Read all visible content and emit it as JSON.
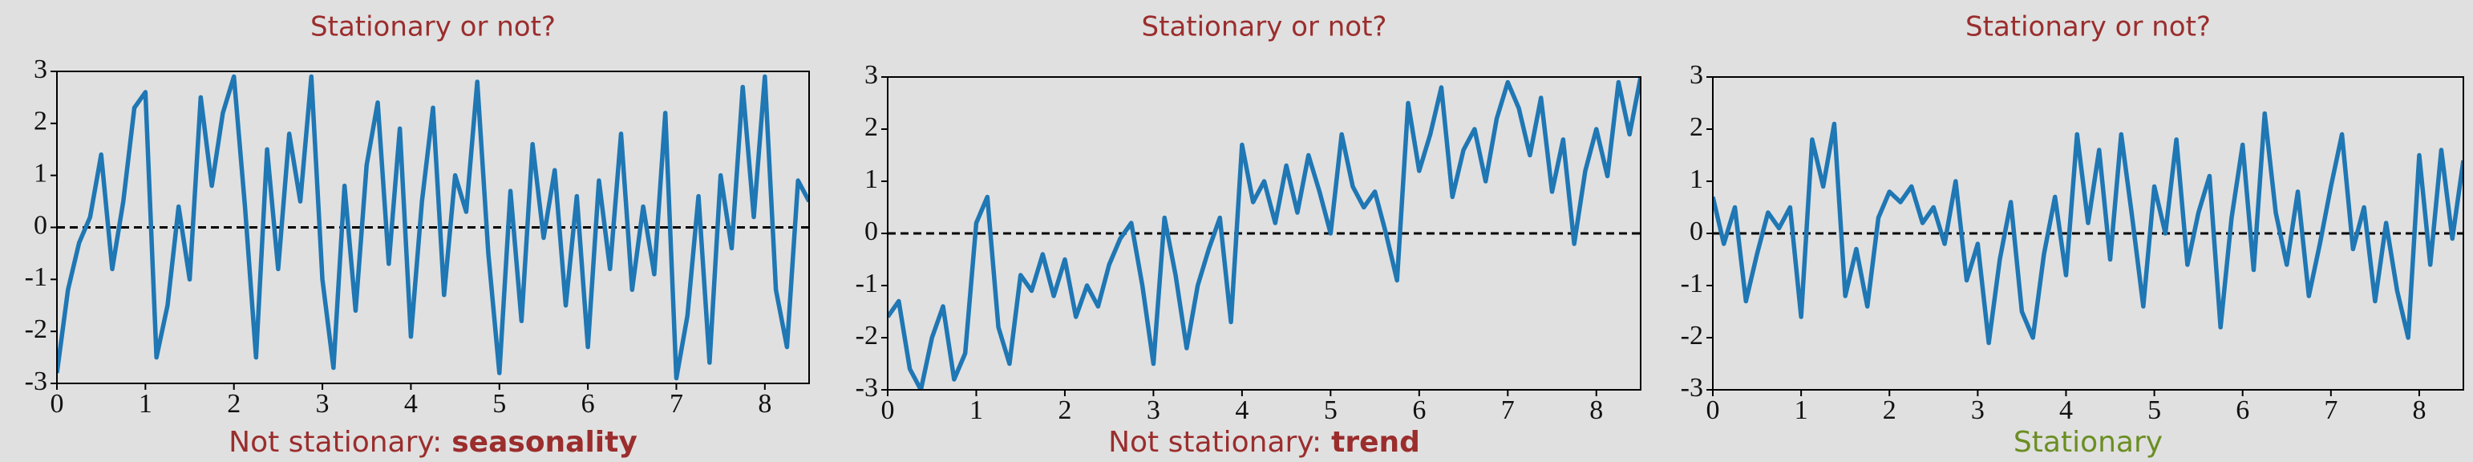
{
  "chart_data": [
    {
      "type": "line",
      "title": "Stationary or not?",
      "title_color": "#9b2d2d",
      "caption": "Not stationary:",
      "caption_emphasis": "seasonality",
      "caption_color": "#9b2d2d",
      "x": [
        0,
        0.125,
        0.25,
        0.375,
        0.5,
        0.625,
        0.75,
        0.875,
        1,
        1.125,
        1.25,
        1.375,
        1.5,
        1.625,
        1.75,
        1.875,
        2,
        2.125,
        2.25,
        2.375,
        2.5,
        2.625,
        2.75,
        2.875,
        3,
        3.125,
        3.25,
        3.375,
        3.5,
        3.625,
        3.75,
        3.875,
        4,
        4.125,
        4.25,
        4.375,
        4.5,
        4.625,
        4.75,
        4.875,
        5,
        5.125,
        5.25,
        5.375,
        5.5,
        5.625,
        5.75,
        5.875,
        6,
        6.125,
        6.25,
        6.375,
        6.5,
        6.625,
        6.75,
        6.875,
        7,
        7.125,
        7.25,
        7.375,
        7.5,
        7.625,
        7.75,
        7.875,
        8,
        8.125,
        8.25,
        8.375,
        8.5
      ],
      "values": [
        -2.8,
        -1.2,
        -0.3,
        0.2,
        1.4,
        -0.8,
        0.5,
        2.3,
        2.6,
        -2.5,
        -1.5,
        0.4,
        -1.0,
        2.5,
        0.8,
        2.2,
        2.9,
        0.4,
        -2.5,
        1.5,
        -0.8,
        1.8,
        0.5,
        2.9,
        -1.0,
        -2.7,
        0.8,
        -1.6,
        1.2,
        2.4,
        -0.7,
        1.9,
        -2.1,
        0.5,
        2.3,
        -1.3,
        1.0,
        0.3,
        2.8,
        -0.5,
        -2.8,
        0.7,
        -1.8,
        1.6,
        -0.2,
        1.1,
        -1.5,
        0.6,
        -2.3,
        0.9,
        -0.8,
        1.8,
        -1.2,
        0.4,
        -0.9,
        2.2,
        -2.9,
        -1.7,
        0.6,
        -2.6,
        1.0,
        -0.4,
        2.7,
        0.2,
        2.9,
        -1.2,
        -2.3,
        0.9,
        0.5
      ],
      "color": "#1f77b4",
      "hline": 0,
      "xlim": [
        0,
        8.5
      ],
      "xticks": [
        0,
        1,
        2,
        3,
        4,
        5,
        6,
        7,
        8
      ],
      "ylim": [
        -3,
        3
      ],
      "yticks": [
        -3,
        -2,
        -1,
        0,
        1,
        2,
        3
      ]
    },
    {
      "type": "line",
      "title": "Stationary or not?",
      "title_color": "#9b2d2d",
      "caption": "Not stationary:",
      "caption_emphasis": "trend",
      "caption_color": "#9b2d2d",
      "x": [
        0,
        0.125,
        0.25,
        0.375,
        0.5,
        0.625,
        0.75,
        0.875,
        1,
        1.125,
        1.25,
        1.375,
        1.5,
        1.625,
        1.75,
        1.875,
        2,
        2.125,
        2.25,
        2.375,
        2.5,
        2.625,
        2.75,
        2.875,
        3,
        3.125,
        3.25,
        3.375,
        3.5,
        3.625,
        3.75,
        3.875,
        4,
        4.125,
        4.25,
        4.375,
        4.5,
        4.625,
        4.75,
        4.875,
        5,
        5.125,
        5.25,
        5.375,
        5.5,
        5.625,
        5.75,
        5.875,
        6,
        6.125,
        6.25,
        6.375,
        6.5,
        6.625,
        6.75,
        6.875,
        7,
        7.125,
        7.25,
        7.375,
        7.5,
        7.625,
        7.75,
        7.875,
        8,
        8.125,
        8.25,
        8.375,
        8.5
      ],
      "values": [
        -1.6,
        -1.3,
        -2.6,
        -3.0,
        -2.0,
        -1.4,
        -2.8,
        -2.3,
        0.2,
        0.7,
        -1.8,
        -2.5,
        -0.8,
        -1.1,
        -0.4,
        -1.2,
        -0.5,
        -1.6,
        -1.0,
        -1.4,
        -0.6,
        -0.1,
        0.2,
        -1.0,
        -2.5,
        0.3,
        -0.8,
        -2.2,
        -1.0,
        -0.3,
        0.3,
        -1.7,
        1.7,
        0.6,
        1.0,
        0.2,
        1.3,
        0.4,
        1.5,
        0.8,
        0.0,
        1.9,
        0.9,
        0.5,
        0.8,
        0.0,
        -0.9,
        2.5,
        1.2,
        1.9,
        2.8,
        0.7,
        1.6,
        2.0,
        1.0,
        2.2,
        2.9,
        2.4,
        1.5,
        2.6,
        0.8,
        1.8,
        -0.2,
        1.2,
        2.0,
        1.1,
        2.9,
        1.9,
        3.0
      ],
      "color": "#1f77b4",
      "hline": 0,
      "xlim": [
        0,
        8.5
      ],
      "xticks": [
        0,
        1,
        2,
        3,
        4,
        5,
        6,
        7,
        8
      ],
      "ylim": [
        -3,
        3
      ],
      "yticks": [
        -3,
        -2,
        -1,
        0,
        1,
        2,
        3
      ]
    },
    {
      "type": "line",
      "title": "Stationary or not?",
      "title_color": "#9b2d2d",
      "caption": "Stationary",
      "caption_color": "#6b8e23",
      "x": [
        0,
        0.125,
        0.25,
        0.375,
        0.5,
        0.625,
        0.75,
        0.875,
        1,
        1.125,
        1.25,
        1.375,
        1.5,
        1.625,
        1.75,
        1.875,
        2,
        2.125,
        2.25,
        2.375,
        2.5,
        2.625,
        2.75,
        2.875,
        3,
        3.125,
        3.25,
        3.375,
        3.5,
        3.625,
        3.75,
        3.875,
        4,
        4.125,
        4.25,
        4.375,
        4.5,
        4.625,
        4.75,
        4.875,
        5,
        5.125,
        5.25,
        5.375,
        5.5,
        5.625,
        5.75,
        5.875,
        6,
        6.125,
        6.25,
        6.375,
        6.5,
        6.625,
        6.75,
        6.875,
        7,
        7.125,
        7.25,
        7.375,
        7.5,
        7.625,
        7.75,
        7.875,
        8,
        8.125,
        8.25,
        8.375,
        8.5
      ],
      "values": [
        0.7,
        -0.2,
        0.5,
        -1.3,
        -0.4,
        0.4,
        0.1,
        0.5,
        -1.6,
        1.8,
        0.9,
        2.1,
        -1.2,
        -0.3,
        -1.4,
        0.3,
        0.8,
        0.6,
        0.9,
        0.2,
        0.5,
        -0.2,
        1.0,
        -0.9,
        -0.2,
        -2.1,
        -0.5,
        0.6,
        -1.5,
        -2.0,
        -0.4,
        0.7,
        -0.8,
        1.9,
        0.2,
        1.6,
        -0.5,
        1.9,
        0.3,
        -1.4,
        0.9,
        0.0,
        1.8,
        -0.6,
        0.4,
        1.1,
        -1.8,
        0.3,
        1.7,
        -0.7,
        2.3,
        0.4,
        -0.6,
        0.8,
        -1.2,
        -0.2,
        0.9,
        1.9,
        -0.3,
        0.5,
        -1.3,
        0.2,
        -1.1,
        -2.0,
        1.5,
        -0.6,
        1.6,
        -0.1,
        1.4
      ],
      "color": "#1f77b4",
      "hline": 0,
      "xlim": [
        0,
        8.5
      ],
      "xticks": [
        0,
        1,
        2,
        3,
        4,
        5,
        6,
        7,
        8
      ],
      "ylim": [
        -3,
        3
      ],
      "yticks": [
        -3,
        -2,
        -1,
        0,
        1,
        2,
        3
      ]
    }
  ]
}
